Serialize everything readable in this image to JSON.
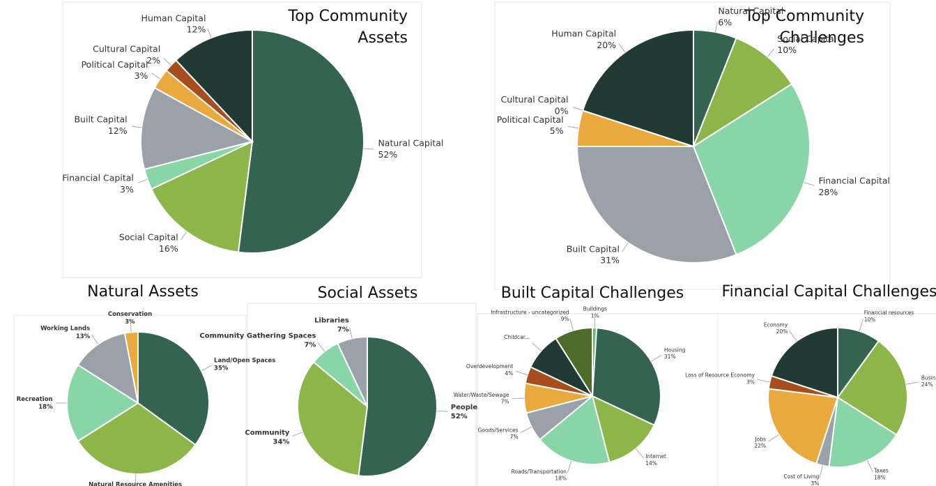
{
  "chart_data": [
    {
      "type": "pie",
      "title": "Top Community Assets",
      "categories": [
        "Natural Capital",
        "Social Capital",
        "Financial Capital",
        "Built Capital",
        "Political Capital",
        "Cultural Capital",
        "Human Capital"
      ],
      "values": [
        52,
        16,
        3,
        12,
        3,
        2,
        12
      ],
      "value_labels": [
        "52%",
        "16%",
        "3%",
        "12%",
        "3%",
        "2%",
        "12%"
      ],
      "colors": [
        "#356352",
        "#8db64a",
        "#88d6a8",
        "#9aa1a8",
        "#e8a93e",
        "#a64e1e",
        "#213a33"
      ]
    },
    {
      "type": "pie",
      "title": "Top Community Challenges",
      "categories": [
        "Natural Capital",
        "Social Capital",
        "Financial Capital",
        "Built Capital",
        "Political Capital",
        "Cultural Capital",
        "Human Capital"
      ],
      "values": [
        6,
        10,
        28,
        31,
        5,
        0,
        20
      ],
      "value_labels": [
        "6%",
        "10%",
        "28%",
        "31%",
        "5%",
        "0%",
        "20%"
      ],
      "colors": [
        "#356352",
        "#8db64a",
        "#88d6a8",
        "#9aa1a8",
        "#e8a93e",
        "#a64e1e",
        "#213a33"
      ]
    },
    {
      "type": "pie",
      "title": "Natural Assets",
      "categories": [
        "Land/Open Spaces",
        "Natural Resource Amenities",
        "Recreation",
        "Working Lands",
        "Conservation"
      ],
      "values": [
        35,
        31,
        18,
        13,
        3
      ],
      "value_labels": [
        "35%",
        "31%",
        "18%",
        "13%",
        "3%"
      ],
      "colors": [
        "#356352",
        "#8db64a",
        "#88d6a8",
        "#9aa1a8",
        "#e8a93e"
      ]
    },
    {
      "type": "pie",
      "title": "Social Assets",
      "categories": [
        "People",
        "Community",
        "Community Gathering Spaces",
        "Libraries"
      ],
      "values": [
        52,
        34,
        7,
        7
      ],
      "value_labels": [
        "52%",
        "34%",
        "7%",
        "7%"
      ],
      "colors": [
        "#356352",
        "#8db64a",
        "#88d6a8",
        "#9aa1a8"
      ]
    },
    {
      "type": "pie",
      "title": "Built Capital Challenges",
      "categories": [
        "Buildings",
        "Housing",
        "Internet",
        "Roads/Transportation",
        "Goods/Services",
        "Water/Waste/Sewage",
        "Overdevelopment",
        "Childcar...",
        "Infrastructure - uncategorized"
      ],
      "values": [
        1,
        31,
        14,
        18,
        7,
        7,
        4,
        9,
        9
      ],
      "value_labels": [
        "1%",
        "31%",
        "14%",
        "18%",
        "7%",
        "7%",
        "4%",
        null,
        "9%"
      ],
      "colors": [
        "#5fbf6a",
        "#356352",
        "#8db64a",
        "#88d6a8",
        "#9aa1a8",
        "#e8a93e",
        "#a64e1e",
        "#213a33",
        "#4f6b2c"
      ]
    },
    {
      "type": "pie",
      "title": "Financial Capital Challenges",
      "categories": [
        "Financial resources",
        "Business Sustainability",
        "Taxes",
        "Cost of Living",
        "Jobs",
        "Loss of Resource Economy",
        "Economy"
      ],
      "values": [
        10,
        24,
        18,
        3,
        22,
        3,
        20
      ],
      "value_labels": [
        "10%",
        "24%",
        "18%",
        "3%",
        "22%",
        "3%",
        "20%"
      ],
      "colors": [
        "#356352",
        "#8db64a",
        "#88d6a8",
        "#9aa1a8",
        "#e8a93e",
        "#a64e1e",
        "#213a33"
      ]
    }
  ]
}
